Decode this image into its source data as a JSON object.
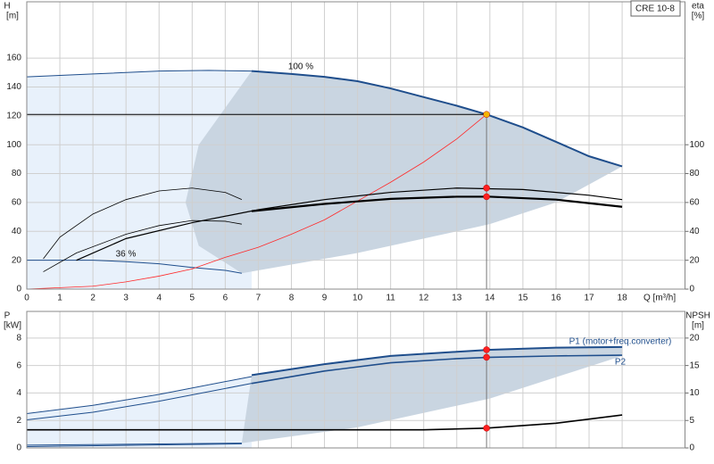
{
  "chart_data": [
    {
      "type": "line",
      "title": "CRE 10-8",
      "ylabel": [
        "H",
        "[m]"
      ],
      "y2label": [
        "eta",
        "[%]"
      ],
      "xlabel": "Q [m³/h]",
      "xlim": [
        0,
        19.9
      ],
      "xticks": [
        0,
        1,
        2,
        3,
        4,
        5,
        6,
        7,
        8,
        9,
        10,
        11,
        12,
        13,
        14,
        15,
        16,
        17,
        18
      ],
      "show_xtick_labels": true,
      "ylim": [
        0,
        199
      ],
      "yticks": [
        0,
        20,
        40,
        60,
        80,
        100,
        120,
        140,
        160
      ],
      "y2lim": [
        0,
        199
      ],
      "y2ticks": [
        0,
        20,
        40,
        60,
        80,
        100
      ],
      "grid": true,
      "areas": [
        {
          "color": "#e8f1fb",
          "x": [
            0,
            2,
            4,
            5.5,
            6.8,
            6.8,
            0
          ],
          "values": [
            147,
            149,
            151,
            151.5,
            151,
            0,
            0
          ]
        },
        {
          "color": "#c9d5e1",
          "x": [
            6.8,
            8,
            9,
            10,
            11,
            12,
            13,
            13.9,
            15,
            16,
            17,
            18,
            16,
            14,
            12,
            10,
            8,
            6.5,
            5.2,
            4.8,
            5.2
          ],
          "values": [
            151,
            149,
            147,
            144,
            139,
            133,
            127,
            121,
            112,
            102,
            92,
            85,
            60,
            45,
            35,
            25,
            17,
            11,
            30,
            60,
            100
          ]
        }
      ],
      "series": [
        {
          "name": "100 %",
          "color": "#1f4e8c",
          "x": [
            6.8,
            8,
            9,
            10,
            11,
            12,
            13,
            13.9,
            15,
            16,
            17,
            18
          ],
          "values": [
            151,
            149,
            147,
            144,
            139,
            133,
            127,
            121,
            112,
            102,
            92,
            85
          ]
        },
        {
          "color": "#1f4e8c",
          "x": [
            0,
            2,
            4,
            5.5,
            6.8
          ],
          "values": [
            147,
            149,
            151,
            151.5,
            151
          ]
        },
        {
          "name": "36 %",
          "color": "#1f4e8c",
          "x": [
            0,
            2,
            3,
            4,
            5,
            6,
            6.5
          ],
          "values": [
            20,
            20,
            19,
            17.5,
            15,
            13,
            11
          ]
        },
        {
          "color": "#ff2a2a",
          "x": [
            0,
            2,
            3,
            4,
            5,
            6,
            7,
            8,
            9,
            10,
            11,
            12,
            13,
            13.9
          ],
          "values": [
            0,
            2,
            5,
            9,
            14,
            22,
            29,
            38,
            48,
            61,
            74,
            88,
            104,
            121
          ]
        },
        {
          "color": "#000000",
          "x": [
            0,
            13.9
          ],
          "values": [
            121,
            121
          ]
        },
        {
          "color": "#777777",
          "x": [
            13.9,
            13.9
          ],
          "values": [
            0,
            121
          ]
        },
        {
          "color": "#000000",
          "axis": "y2",
          "x": [
            1.5,
            3,
            5,
            7,
            9,
            11,
            13,
            15,
            17,
            18
          ],
          "values": [
            20,
            35,
            46,
            55,
            62,
            67,
            70,
            69,
            65,
            62
          ]
        },
        {
          "color": "#000000",
          "axis": "y2",
          "x": [
            6.8,
            9,
            11,
            13,
            14,
            16,
            18
          ],
          "values": [
            54,
            59,
            62.5,
            64,
            64,
            62,
            57
          ]
        },
        {
          "color": "#000000",
          "axis": "y2",
          "x": [
            0.5,
            1,
            2,
            3,
            4,
            5,
            6,
            6.5
          ],
          "values": [
            21,
            36,
            52,
            62,
            68,
            70,
            67,
            62
          ]
        },
        {
          "color": "#000000",
          "axis": "y2",
          "x": [
            0.5,
            1.5,
            3,
            4,
            5,
            6,
            6.5
          ],
          "values": [
            12,
            25,
            38,
            44,
            47.5,
            47,
            45
          ]
        }
      ],
      "points": [
        {
          "color": "#f5b400",
          "x": 13.9,
          "y": 121
        },
        {
          "color": "#ff2020",
          "axis": "y2",
          "x": 13.9,
          "y": 70
        },
        {
          "color": "#ff2020",
          "axis": "y2",
          "x": 13.9,
          "y": 64
        }
      ]
    },
    {
      "type": "line",
      "ylabel": [
        "P",
        "[kW]"
      ],
      "y2label": [
        "NPSH",
        "[m]"
      ],
      "xlim": [
        0,
        19.9
      ],
      "xticks": [
        0,
        1,
        2,
        3,
        4,
        5,
        6,
        7,
        8,
        9,
        10,
        11,
        12,
        13,
        14,
        15,
        16,
        17,
        18
      ],
      "show_xtick_labels": false,
      "ylim": [
        0,
        9.94
      ],
      "yticks": [
        0,
        2,
        4,
        6,
        8
      ],
      "y2lim": [
        0,
        24.85
      ],
      "y2ticks": [
        0,
        5,
        10,
        15,
        20
      ],
      "grid": true,
      "areas": [
        {
          "color": "#e8f1fb",
          "x": [
            0,
            2,
            4,
            6.8,
            6.8,
            0
          ],
          "values": [
            2.5,
            3.1,
            3.9,
            5.2,
            0,
            0
          ]
        },
        {
          "color": "#c9d5e1",
          "x": [
            6.8,
            9,
            11,
            13,
            14,
            16,
            18,
            18,
            14,
            10,
            6.5
          ],
          "values": [
            5.3,
            6.1,
            6.7,
            7.0,
            7.15,
            7.3,
            7.35,
            6.7,
            3.6,
            1.5,
            0.35
          ]
        }
      ],
      "series": [
        {
          "name": "P1 (motor+freq.converter)",
          "color": "#1f4e8c",
          "x": [
            6.8,
            9,
            11,
            13,
            14,
            16,
            18
          ],
          "values": [
            5.3,
            6.1,
            6.7,
            7.0,
            7.15,
            7.3,
            7.35
          ]
        },
        {
          "color": "#1f4e8c",
          "x": [
            0,
            2,
            4,
            6.8
          ],
          "values": [
            2.5,
            3.1,
            3.9,
            5.2
          ]
        },
        {
          "name": "P2",
          "color": "#1f4e8c",
          "x": [
            6.8,
            9,
            11,
            13,
            14,
            16,
            18
          ],
          "values": [
            4.7,
            5.6,
            6.2,
            6.5,
            6.6,
            6.7,
            6.75
          ]
        },
        {
          "color": "#1f4e8c",
          "x": [
            0,
            2,
            4,
            6.8
          ],
          "values": [
            2.05,
            2.6,
            3.4,
            4.7
          ]
        },
        {
          "color": "#000000",
          "axis": "y2",
          "x": [
            0,
            7,
            12,
            13.9,
            16,
            18
          ],
          "values": [
            3.3,
            3.3,
            3.3,
            3.6,
            4.5,
            6
          ]
        },
        {
          "color": "#1f4e8c",
          "x": [
            0,
            6.5
          ],
          "values": [
            0.2,
            0.35
          ]
        },
        {
          "color": "#1f4e8c",
          "x": [
            0,
            6.5
          ],
          "values": [
            0.1,
            0.3
          ]
        },
        {
          "color": "#777777",
          "x": [
            13.9,
            13.9
          ],
          "values": [
            0,
            9.94
          ]
        }
      ],
      "points": [
        {
          "color": "#ff2020",
          "x": 13.9,
          "y": 7.15
        },
        {
          "color": "#ff2020",
          "x": 13.9,
          "y": 6.6
        },
        {
          "color": "#ff2020",
          "axis": "y2",
          "x": 13.9,
          "y": 3.6
        }
      ]
    }
  ]
}
